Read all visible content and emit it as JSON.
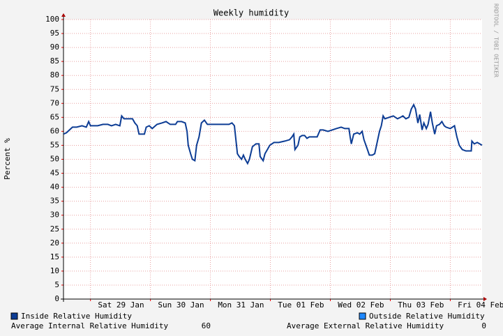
{
  "chart_data": {
    "type": "line",
    "title": "Weekly humidity",
    "ylabel": "Percent %",
    "watermark": "RRDTOOL / TOBI OETIKER",
    "xlim": [
      0,
      6.98
    ],
    "ylim": [
      0,
      100
    ],
    "yticks": [
      0,
      5,
      10,
      15,
      20,
      25,
      30,
      35,
      40,
      45,
      50,
      55,
      60,
      65,
      70,
      75,
      80,
      85,
      90,
      95,
      100
    ],
    "xticks": [
      {
        "value": 0.96,
        "label": "Sat 29 Jan"
      },
      {
        "value": 1.96,
        "label": "Sun 30 Jan"
      },
      {
        "value": 2.96,
        "label": "Mon 31 Jan"
      },
      {
        "value": 3.96,
        "label": "Tue 01 Feb"
      },
      {
        "value": 4.96,
        "label": "Wed 02 Feb"
      },
      {
        "value": 5.96,
        "label": "Thu 03 Feb"
      },
      {
        "value": 6.96,
        "label": "Fri 04 Feb"
      }
    ],
    "xgrid": [
      0.45,
      1.45,
      2.45,
      3.45,
      4.45,
      5.45,
      6.45
    ],
    "grid": true,
    "x": [
      0,
      0.05,
      0.1,
      0.15,
      0.22,
      0.31,
      0.38,
      0.42,
      0.45,
      0.57,
      0.66,
      0.74,
      0.8,
      0.87,
      0.94,
      0.97,
      1.01,
      1.09,
      1.15,
      1.19,
      1.23,
      1.26,
      1.3,
      1.35,
      1.38,
      1.43,
      1.48,
      1.56,
      1.64,
      1.71,
      1.78,
      1.87,
      1.9,
      1.97,
      2.03,
      2.06,
      2.08,
      2.12,
      2.15,
      2.19,
      2.22,
      2.26,
      2.28,
      2.3,
      2.35,
      2.4,
      2.49,
      2.57,
      2.66,
      2.76,
      2.81,
      2.85,
      2.87,
      2.9,
      2.93,
      2.97,
      3.0,
      3.03,
      3.07,
      3.1,
      3.15,
      3.21,
      3.26,
      3.28,
      3.33,
      3.36,
      3.4,
      3.44,
      3.51,
      3.59,
      3.69,
      3.77,
      3.81,
      3.84,
      3.86,
      3.91,
      3.94,
      3.98,
      4.02,
      4.06,
      4.1,
      4.17,
      4.23,
      4.28,
      4.33,
      4.41,
      4.48,
      4.55,
      4.63,
      4.69,
      4.76,
      4.78,
      4.8,
      4.84,
      4.9,
      4.94,
      4.98,
      5.01,
      5.06,
      5.1,
      5.15,
      5.19,
      5.22,
      5.27,
      5.3,
      5.33,
      5.36,
      5.43,
      5.5,
      5.57,
      5.62,
      5.66,
      5.71,
      5.76,
      5.8,
      5.84,
      5.87,
      5.91,
      5.94,
      5.98,
      6.01,
      6.05,
      6.08,
      6.12,
      6.15,
      6.19,
      6.22,
      6.27,
      6.31,
      6.35,
      6.38,
      6.45,
      6.52,
      6.56,
      6.6,
      6.65,
      6.71,
      6.77,
      6.8,
      6.81,
      6.85,
      6.9,
      6.94,
      6.98
    ],
    "series": [
      {
        "name": "Inside Relative Humidity",
        "color": "#0c3c94",
        "values": [
          59,
          59.5,
          60.5,
          61.5,
          61.5,
          62,
          61.5,
          63.5,
          62,
          62,
          62.5,
          62.5,
          62,
          62.5,
          62,
          65.5,
          64.5,
          64.5,
          64.5,
          63,
          62,
          59,
          59,
          59,
          61.5,
          62,
          61,
          62.5,
          63,
          63.5,
          62.5,
          62.5,
          63.5,
          63.5,
          63,
          60,
          55,
          52,
          50,
          49.5,
          55,
          58,
          60.5,
          63,
          64,
          62.5,
          62.5,
          62.5,
          62.5,
          62.5,
          63,
          62,
          58,
          52,
          51,
          50,
          51.5,
          50,
          48.5,
          50,
          54.5,
          55.5,
          55.5,
          51,
          49.5,
          52,
          53.5,
          55,
          56,
          56,
          56.5,
          57,
          58,
          59,
          53.5,
          55,
          58,
          58.5,
          58.5,
          57.5,
          58,
          58,
          58,
          60.5,
          60.5,
          60,
          60.5,
          61,
          61.5,
          61,
          61,
          58,
          55.5,
          59,
          59.5,
          59,
          60,
          57,
          54,
          51.5,
          51.5,
          52,
          55,
          60,
          62,
          65.5,
          64.5,
          65,
          65.5,
          64.5,
          65,
          65.5,
          64.5,
          65,
          68,
          69.5,
          68,
          63,
          66,
          60.5,
          63,
          61,
          62.5,
          67,
          63,
          59,
          62,
          62.5,
          63.5,
          62,
          61.5,
          61,
          62,
          58,
          55,
          53.5,
          53,
          53,
          53,
          56.5,
          55.5,
          56,
          55.5,
          55
        ]
      },
      {
        "name": "Outside Relative Humidity",
        "color": "#1e88ff"
      }
    ],
    "summary": [
      {
        "label": "Average Internal Relative Humidity",
        "value": 60
      },
      {
        "label": "Average External Relative Humidity",
        "value": 0
      }
    ]
  }
}
